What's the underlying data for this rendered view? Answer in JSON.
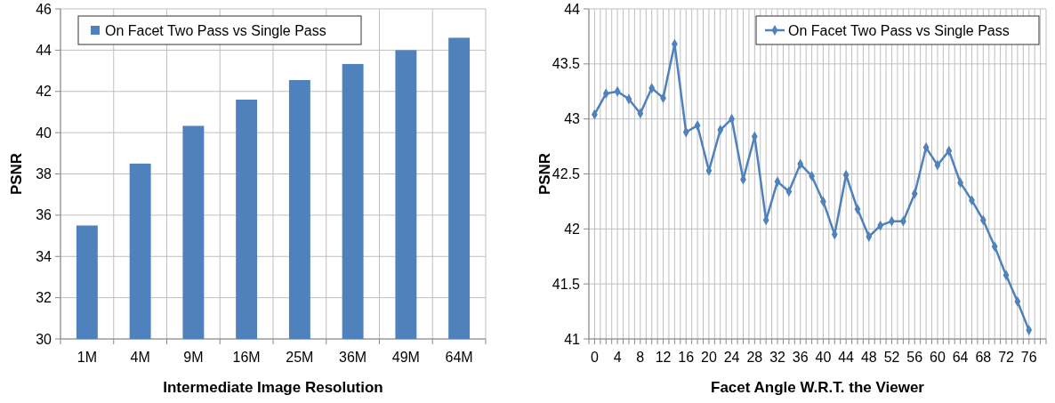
{
  "chart_data": [
    {
      "type": "bar",
      "categories": [
        "1M",
        "4M",
        "9M",
        "16M",
        "25M",
        "36M",
        "49M",
        "64M"
      ],
      "xlabel": "Intermediate Image Resolution",
      "ylabel": "PSNR",
      "ylim": [
        30,
        46
      ],
      "yticks": [
        30,
        32,
        34,
        36,
        38,
        40,
        42,
        44,
        46
      ],
      "grid": true,
      "legend": "top left",
      "series": [
        {
          "name": "On Facet Two Pass vs Single Pass",
          "color": "#4f81bd",
          "values": [
            35.5,
            38.5,
            40.33,
            41.6,
            42.55,
            43.33,
            44.0,
            44.6
          ]
        }
      ]
    },
    {
      "type": "line",
      "xlabel": "Facet Angle W.R.T. the Viewer",
      "ylabel": "PSNR",
      "xlim": [
        -1,
        79
      ],
      "ylim": [
        41,
        44
      ],
      "yticks": [
        41,
        41.5,
        42,
        42.5,
        43,
        43.5,
        44
      ],
      "xticks": [
        {
          "value": -1,
          "label": null
        },
        0,
        {
          "value": 1,
          "label": null
        },
        {
          "value": 2,
          "label": null
        },
        {
          "value": 3,
          "label": null
        },
        4,
        {
          "value": 5,
          "label": null
        },
        {
          "value": 6,
          "label": null
        },
        {
          "value": 7,
          "label": null
        },
        8,
        {
          "value": 9,
          "label": null
        },
        {
          "value": 10,
          "label": null
        },
        {
          "value": 11,
          "label": null
        },
        12,
        {
          "value": 13,
          "label": null
        },
        {
          "value": 14,
          "label": null
        },
        {
          "value": 15,
          "label": null
        },
        16,
        {
          "value": 17,
          "label": null
        },
        {
          "value": 18,
          "label": null
        },
        {
          "value": 19,
          "label": null
        },
        20,
        {
          "value": 21,
          "label": null
        },
        {
          "value": 22,
          "label": null
        },
        {
          "value": 23,
          "label": null
        },
        24,
        {
          "value": 25,
          "label": null
        },
        {
          "value": 26,
          "label": null
        },
        {
          "value": 27,
          "label": null
        },
        28,
        {
          "value": 29,
          "label": null
        },
        {
          "value": 30,
          "label": null
        },
        {
          "value": 31,
          "label": null
        },
        32,
        {
          "value": 33,
          "label": null
        },
        {
          "value": 34,
          "label": null
        },
        {
          "value": 35,
          "label": null
        },
        36,
        {
          "value": 37,
          "label": null
        },
        {
          "value": 38,
          "label": null
        },
        {
          "value": 39,
          "label": null
        },
        40,
        {
          "value": 41,
          "label": null
        },
        {
          "value": 42,
          "label": null
        },
        {
          "value": 43,
          "label": null
        },
        44,
        {
          "value": 45,
          "label": null
        },
        {
          "value": 46,
          "label": null
        },
        {
          "value": 47,
          "label": null
        },
        48,
        {
          "value": 49,
          "label": null
        },
        {
          "value": 50,
          "label": null
        },
        {
          "value": 51,
          "label": null
        },
        52,
        {
          "value": 53,
          "label": null
        },
        {
          "value": 54,
          "label": null
        },
        {
          "value": 55,
          "label": null
        },
        56,
        {
          "value": 57,
          "label": null
        },
        {
          "value": 58,
          "label": null
        },
        {
          "value": 59,
          "label": null
        },
        60,
        {
          "value": 61,
          "label": null
        },
        {
          "value": 62,
          "label": null
        },
        {
          "value": 63,
          "label": null
        },
        64,
        {
          "value": 65,
          "label": null
        },
        {
          "value": 66,
          "label": null
        },
        {
          "value": 67,
          "label": null
        },
        68,
        {
          "value": 69,
          "label": null
        },
        {
          "value": 70,
          "label": null
        },
        {
          "value": 71,
          "label": null
        },
        72,
        {
          "value": 73,
          "label": null
        },
        {
          "value": 74,
          "label": null
        },
        {
          "value": 75,
          "label": null
        },
        76,
        {
          "value": 77,
          "label": null
        },
        {
          "value": 78,
          "label": null
        },
        {
          "value": 79,
          "label": null
        }
      ],
      "grid": true,
      "legend": "top right",
      "marker": "diamond",
      "x": [
        0,
        2,
        4,
        6,
        8,
        10,
        12,
        14,
        16,
        18,
        20,
        22,
        24,
        26,
        28,
        30,
        32,
        34,
        36,
        38,
        40,
        42,
        44,
        46,
        48,
        50,
        52,
        54,
        56,
        58,
        60,
        62,
        64,
        66,
        68,
        70,
        72,
        74,
        76
      ],
      "series": [
        {
          "name": "On Facet Two Pass vs Single Pass",
          "color": "#4f81bd",
          "values": [
            43.04,
            43.23,
            43.25,
            43.18,
            43.05,
            43.28,
            43.19,
            43.68,
            42.88,
            42.94,
            42.53,
            42.9,
            43.0,
            42.45,
            42.84,
            42.08,
            42.43,
            42.34,
            42.59,
            42.48,
            42.25,
            41.95,
            42.49,
            42.18,
            41.93,
            42.03,
            42.07,
            42.07,
            42.32,
            42.74,
            42.58,
            42.71,
            42.42,
            42.26,
            42.08,
            41.84,
            41.58,
            41.34,
            41.08
          ]
        }
      ]
    }
  ]
}
